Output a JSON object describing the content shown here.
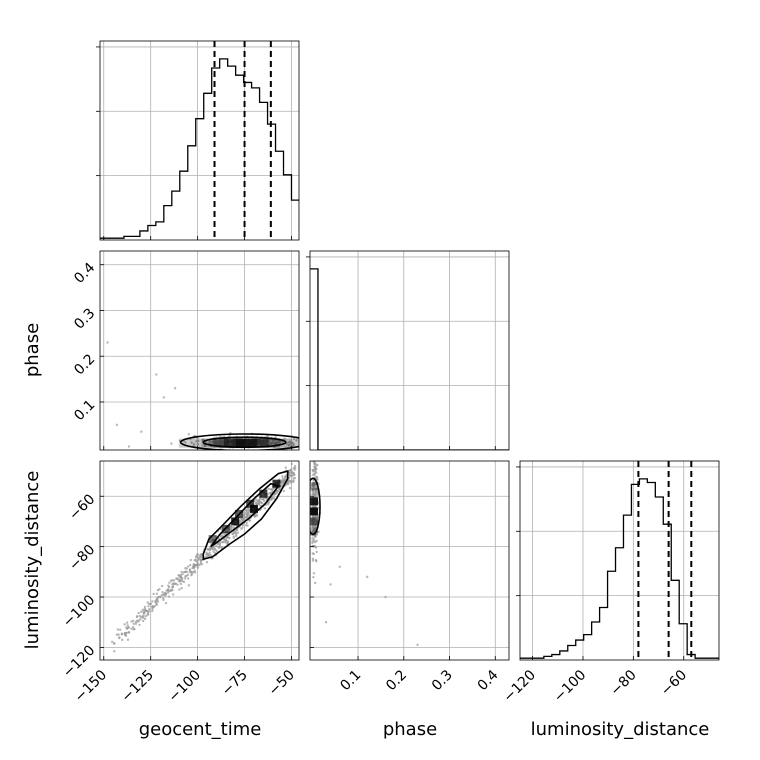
{
  "chart_data": {
    "type": "corner",
    "parameters": [
      "geocent_time",
      "phase",
      "luminosity_distance"
    ],
    "ranges": {
      "geocent_time": [
        -152,
        -46
      ],
      "phase": [
        -0.005,
        0.43
      ],
      "luminosity_distance": [
        -125,
        -46
      ]
    },
    "ticks": {
      "geocent_time": [
        -150,
        -125,
        -100,
        -75,
        -50
      ],
      "phase": [
        0.1,
        0.2,
        0.3,
        0.4
      ],
      "luminosity_distance": [
        -120,
        -100,
        -80,
        -60
      ]
    },
    "tick_labels": {
      "geocent_time": [
        "−150",
        "−125",
        "−100",
        "−75",
        "−50"
      ],
      "phase": [
        "0.1",
        "0.2",
        "0.3",
        "0.4"
      ],
      "luminosity_distance": [
        "−120",
        "−100",
        "−80",
        "−60"
      ]
    },
    "quantiles": {
      "geocent_time": [
        -91,
        -75,
        -61
      ],
      "luminosity_distance": [
        -78,
        -66,
        -57
      ]
    },
    "histograms": {
      "geocent_time": {
        "bin_start": -152,
        "bin_width": 4.25,
        "counts": [
          0.01,
          0.01,
          0.01,
          0.02,
          0.02,
          0.05,
          0.08,
          0.1,
          0.19,
          0.27,
          0.38,
          0.52,
          0.67,
          0.81,
          0.95,
          1.0,
          0.96,
          0.91,
          0.87,
          0.84,
          0.76,
          0.64,
          0.49,
          0.36,
          0.22,
          0.06
        ]
      },
      "phase": {
        "bin_start": -0.005,
        "bin_width": 0.0174,
        "counts": [
          1.0,
          0,
          0,
          0,
          0,
          0,
          0,
          0,
          0,
          0,
          0,
          0,
          0,
          0,
          0,
          0,
          0,
          0,
          0,
          0,
          0,
          0,
          0,
          0,
          0
        ]
      },
      "luminosity_distance": {
        "bin_start": -125,
        "bin_width": 3.16,
        "counts": [
          0.01,
          0.01,
          0.01,
          0.02,
          0.03,
          0.05,
          0.08,
          0.11,
          0.14,
          0.21,
          0.29,
          0.49,
          0.62,
          0.8,
          0.97,
          1.0,
          0.98,
          0.9,
          0.75,
          0.44,
          0.2,
          0.03,
          0.01,
          0.01,
          0.01
        ]
      }
    },
    "density_2d": {
      "geocent_time_vs_phase": {
        "x": "geocent_time",
        "y": "phase",
        "center": [
          -75,
          0.012
        ],
        "spread": [
          12,
          0.006
        ],
        "contour_levels": [
          {
            "half_width": [
              34,
              0.018
            ]
          },
          {
            "half_width": [
              22,
              0.011
            ]
          }
        ],
        "outliers": [
          [
            -148,
            0.23
          ],
          [
            -143,
            0.05
          ],
          [
            -130,
            0.035
          ],
          [
            -122,
            0.16
          ],
          [
            -118,
            0.11
          ],
          [
            -112,
            0.13
          ]
        ]
      },
      "geocent_time_vs_luminosity_distance": {
        "x": "geocent_time",
        "y": "luminosity_distance",
        "contour_outer": [
          [
            -97,
            -83
          ],
          [
            -94,
            -77
          ],
          [
            -86,
            -71
          ],
          [
            -77,
            -64
          ],
          [
            -67,
            -57
          ],
          [
            -57,
            -51
          ],
          [
            -52,
            -50
          ],
          [
            -52,
            -53
          ],
          [
            -58,
            -61
          ],
          [
            -66,
            -69
          ],
          [
            -75,
            -75
          ],
          [
            -83,
            -79
          ],
          [
            -92,
            -84
          ],
          [
            -97,
            -85
          ]
        ],
        "contour_inner": [
          [
            -93,
            -80
          ],
          [
            -88,
            -75
          ],
          [
            -79,
            -68
          ],
          [
            -70,
            -61
          ],
          [
            -61,
            -55
          ],
          [
            -57,
            -56
          ],
          [
            -64,
            -63
          ],
          [
            -73,
            -69
          ],
          [
            -82,
            -74
          ],
          [
            -91,
            -79
          ],
          [
            -93,
            -80
          ]
        ],
        "cells": [
          [
            -92,
            -77
          ],
          [
            -85,
            -73
          ],
          [
            -78,
            -67
          ],
          [
            -72,
            -63
          ],
          [
            -65,
            -59
          ],
          [
            -58,
            -55
          ],
          [
            -80,
            -70
          ],
          [
            -70,
            -65
          ]
        ],
        "trail_from": [
          -148,
          -120
        ],
        "trail_to": [
          -48,
          -50
        ]
      },
      "phase_vs_luminosity_distance": {
        "x": "phase",
        "y": "luminosity_distance",
        "center": [
          0.005,
          -64
        ],
        "spread": [
          0.004,
          6
        ],
        "outliers": [
          [
            0.04,
            -95
          ],
          [
            0.12,
            -92
          ],
          [
            0.16,
            -100
          ],
          [
            0.23,
            -119
          ],
          [
            0.03,
            -110
          ],
          [
            0.06,
            -88
          ]
        ]
      }
    }
  }
}
